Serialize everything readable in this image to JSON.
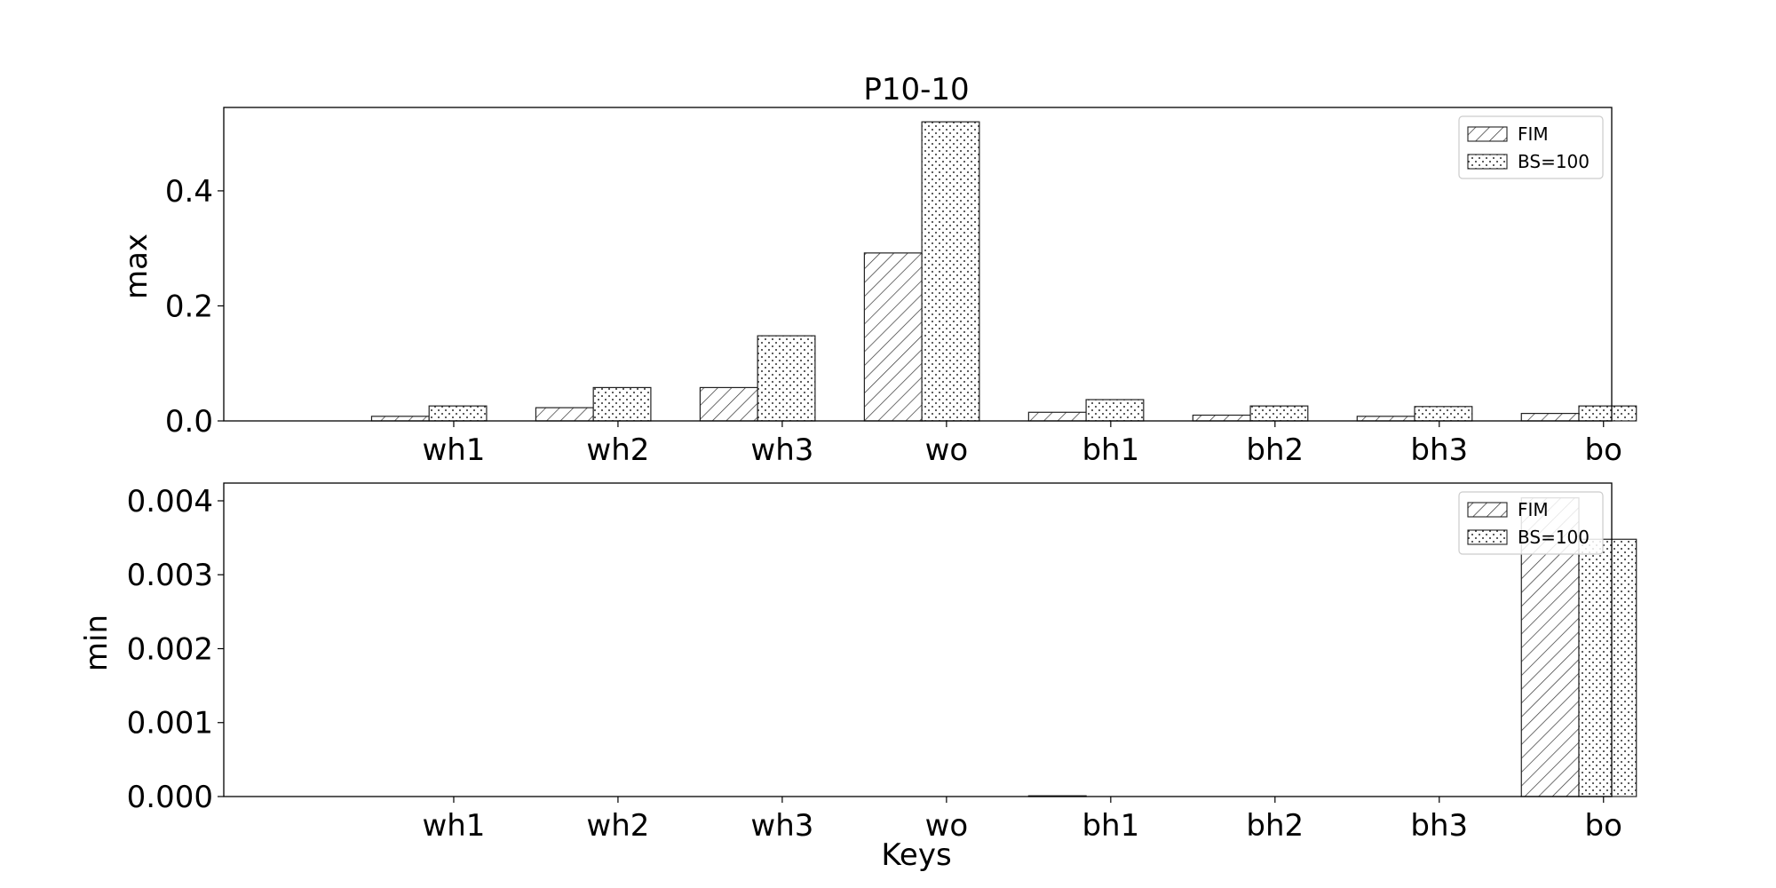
{
  "figure": {
    "title": "P10-10",
    "xlabel": "Keys"
  },
  "chart_data": [
    {
      "type": "bar",
      "title": "P10-10",
      "xlabel": "",
      "ylabel": "max",
      "categories": [
        "wh1",
        "wh2",
        "wh3",
        "wo",
        "bh1",
        "bh2",
        "bh3",
        "bo"
      ],
      "series": [
        {
          "name": "FIM",
          "hatch": "diagonal",
          "values": [
            0.008,
            0.023,
            0.058,
            0.292,
            0.015,
            0.01,
            0.008,
            0.013
          ]
        },
        {
          "name": "BS=100",
          "hatch": "dots",
          "values": [
            0.026,
            0.058,
            0.148,
            0.52,
            0.037,
            0.026,
            0.025,
            0.026
          ]
        }
      ],
      "ylim": [
        0,
        0.545
      ],
      "yticks": [
        0.0,
        0.2,
        0.4
      ],
      "ytick_labels": [
        "0.0",
        "0.2",
        "0.4"
      ],
      "grid": false,
      "legend": "top-right"
    },
    {
      "type": "bar",
      "title": "",
      "xlabel": "Keys",
      "ylabel": "min",
      "categories": [
        "wh1",
        "wh2",
        "wh3",
        "wo",
        "bh1",
        "bh2",
        "bh3",
        "bo"
      ],
      "series": [
        {
          "name": "FIM",
          "hatch": "diagonal",
          "values": [
            0.0,
            0.0,
            0.0,
            0.0,
            1e-05,
            0.0,
            0.0,
            0.00404
          ]
        },
        {
          "name": "BS=100",
          "hatch": "dots",
          "values": [
            0.0,
            0.0,
            0.0,
            0.0,
            0.0,
            0.0,
            0.0,
            0.00348
          ]
        }
      ],
      "ylim": [
        0,
        0.00424
      ],
      "yticks": [
        0.0,
        0.001,
        0.002,
        0.003,
        0.004
      ],
      "ytick_labels": [
        "0.000",
        "0.001",
        "0.002",
        "0.003",
        "0.004"
      ],
      "grid": false,
      "legend": "top-right"
    }
  ]
}
